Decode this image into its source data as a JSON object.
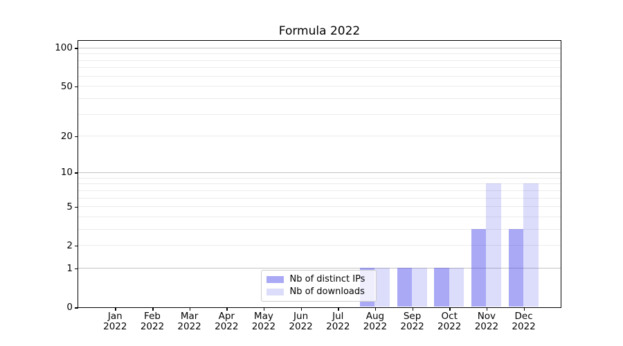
{
  "chart_data": {
    "type": "bar",
    "title": "Formula 2022",
    "categories": [
      "Jan 2022",
      "Feb 2022",
      "Mar 2022",
      "Apr 2022",
      "May 2022",
      "Jun 2022",
      "Jul 2022",
      "Aug 2022",
      "Sep 2022",
      "Oct 2022",
      "Nov 2022",
      "Dec 2022"
    ],
    "series": [
      {
        "name": "Nb of distinct IPs",
        "color": "rgba(50,50,232,0.42)",
        "values": [
          0,
          0,
          0,
          0,
          0,
          0,
          0,
          1,
          1,
          1,
          3,
          3
        ]
      },
      {
        "name": "Nb of downloads",
        "color": "rgba(50,50,232,0.17)",
        "values": [
          0,
          0,
          0,
          0,
          0,
          0,
          0,
          1,
          1,
          1,
          8,
          8
        ]
      }
    ],
    "xlabel": "",
    "ylabel": "",
    "yscale": "log1p",
    "ytick_labels": [
      0,
      1,
      2,
      5,
      10,
      20,
      50,
      100
    ],
    "major_grid_values": [
      1,
      10,
      100
    ],
    "minor_grid_values": [
      2,
      3,
      4,
      5,
      6,
      7,
      8,
      9,
      20,
      30,
      40,
      50,
      60,
      70,
      80,
      90
    ],
    "ylim": [
      0,
      115
    ],
    "grid": true,
    "legend_position": "lower center"
  },
  "colors": {
    "background": "#ffffff",
    "axis": "#000000",
    "text": "#000000",
    "major_grid": "#c3c3c3",
    "minor_grid": "#ebebeb",
    "legend_border": "#cccccc",
    "legend_bg": "rgba(255,255,255,0.8)"
  }
}
